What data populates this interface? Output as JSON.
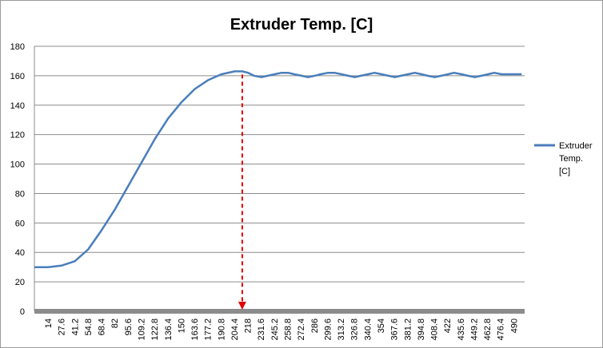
{
  "chart_data": {
    "type": "line",
    "title": "Extruder Temp. [C]",
    "xlabel": "",
    "ylabel": "",
    "ylim": [
      0,
      180
    ],
    "yticks": [
      0,
      20,
      40,
      60,
      80,
      100,
      120,
      140,
      160,
      180
    ],
    "xtick_labels": [
      "14",
      "27.6",
      "41.2",
      "54.8",
      "68.4",
      "82",
      "95.6",
      "109.2",
      "122.8",
      "136.4",
      "150",
      "163.6",
      "177.2",
      "190.8",
      "204.4",
      "218",
      "231.6",
      "245.2",
      "258.8",
      "272.4",
      "286",
      "299.6",
      "313.2",
      "326.8",
      "340.4",
      "354",
      "367.6",
      "381.2",
      "394.8",
      "408.4",
      "422",
      "435.6",
      "449.2",
      "462.8",
      "476.4",
      "490"
    ],
    "grid": true,
    "legend_position": "right",
    "legend_label_lines": [
      "Extruder",
      "Temp.",
      "[C]"
    ],
    "line_color": "#4a7ebb",
    "marker": {
      "x": 212,
      "style": "dashed",
      "color": "#e00000",
      "direction": "down"
    },
    "series": [
      {
        "name": "Extruder Temp. [C]",
        "x": [
          0,
          14,
          27.6,
          41.2,
          54.8,
          68.4,
          82,
          95.6,
          109.2,
          122.8,
          136.4,
          150,
          163.6,
          177.2,
          190.8,
          204.4,
          212,
          218,
          224,
          231.6,
          238,
          245.2,
          252,
          258.8,
          265,
          272.4,
          279,
          286,
          292,
          299.6,
          306,
          313.2,
          320,
          326.8,
          333,
          340.4,
          347,
          354,
          361,
          367.6,
          374,
          381.2,
          388,
          394.8,
          401,
          408.4,
          415,
          422,
          428,
          435.6,
          442,
          449.2,
          456,
          462.8,
          469,
          476.4,
          483,
          490,
          497
        ],
        "values": [
          30,
          30,
          31,
          34,
          42,
          55,
          69,
          85,
          101,
          117,
          131,
          142,
          151,
          157,
          161,
          163,
          163,
          162,
          160,
          159,
          160,
          161,
          162,
          162,
          161,
          160,
          159,
          160,
          161,
          162,
          162,
          161,
          160,
          159,
          160,
          161,
          162,
          161,
          160,
          159,
          160,
          161,
          162,
          161,
          160,
          159,
          160,
          161,
          162,
          161,
          160,
          159,
          160,
          161,
          162,
          161,
          161,
          161,
          161
        ]
      }
    ]
  }
}
